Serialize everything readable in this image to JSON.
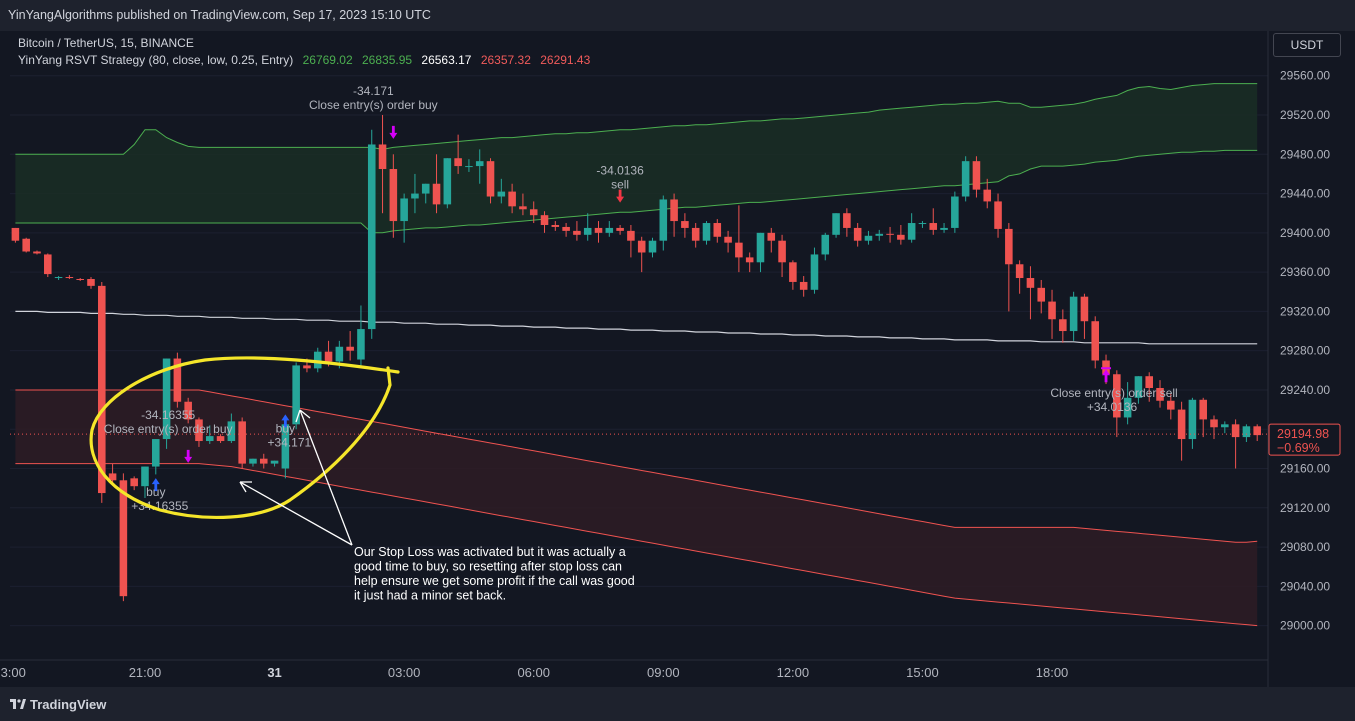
{
  "publish_info": "YinYangAlgorithms published on TradingView.com, Sep 17, 2023 15:10 UTC",
  "symbol": "Bitcoin / TetherUS, 15, BINANCE",
  "indicator": {
    "name": "YinYang RSVT Strategy (80, close, low, 0.25, Entry)",
    "values": [
      "26769.02",
      "26835.95",
      "26563.17",
      "26357.32",
      "26291.43"
    ],
    "value_colors": [
      "#4caf50",
      "#4caf50",
      "#ffffff",
      "#f15b5b",
      "#f15b5b"
    ]
  },
  "currency_button": "USDT",
  "footer_brand": "TradingView",
  "footer_logo": "tradingview-logo-icon",
  "colors": {
    "up": "#26a69a",
    "down": "#ef5350",
    "upper_band": "#4caf50",
    "lower_band": "#ef5350",
    "midline": "#d1d4dc",
    "annotation": "#f5e62a",
    "buy_arrow": "#2962ff",
    "sell_arrow": "#f23645",
    "close_arrow": "#d500f9"
  },
  "chart_data": {
    "type": "candlestick",
    "x_ticks": [
      "3:00",
      "21:00",
      "31",
      "03:00",
      "06:00",
      "09:00",
      "12:00",
      "15:00",
      "18:00"
    ],
    "y_ticks": [
      "29560.00",
      "29520.00",
      "29480.00",
      "29440.00",
      "29400.00",
      "29360.00",
      "29320.00",
      "29280.00",
      "29240.00",
      "29200.00",
      "29160.00",
      "29120.00",
      "29080.00",
      "29040.00",
      "29000.00"
    ],
    "ylim": [
      28965,
      29575
    ],
    "bar_interval_minutes": 15,
    "first_bar_time": "Aug 30 18:00",
    "current_price": "29194.98",
    "current_change": "−0.69%",
    "candles": [
      [
        29405,
        29402,
        29392,
        29390
      ],
      [
        29394,
        29395,
        29381,
        29380
      ],
      [
        29381,
        29382,
        29379,
        29378
      ],
      [
        29378,
        29379,
        29358,
        29355
      ],
      [
        29355,
        29356,
        29355,
        29352
      ],
      [
        29355,
        29357,
        29354,
        29353
      ],
      [
        29353,
        29354,
        29352,
        29351
      ],
      [
        29353,
        29355,
        29346,
        29343
      ],
      [
        29346,
        29350,
        29135,
        29125
      ],
      [
        29155,
        29165,
        29148,
        29145
      ],
      [
        29148,
        29155,
        29030,
        29025
      ],
      [
        29150,
        29152,
        29142,
        29138
      ],
      [
        29142,
        29158,
        29162,
        29130
      ],
      [
        29162,
        29166,
        29190,
        29154
      ],
      [
        29190,
        29194,
        29272,
        29180
      ],
      [
        29272,
        29278,
        29228,
        29222
      ],
      [
        29228,
        29232,
        29210,
        29206
      ],
      [
        29210,
        29212,
        29188,
        29182
      ],
      [
        29188,
        29204,
        29193,
        29185
      ],
      [
        29193,
        29195,
        29188,
        29186
      ],
      [
        29188,
        29216,
        29208,
        29186
      ],
      [
        29208,
        29212,
        29165,
        29160
      ],
      [
        29165,
        29170,
        29170,
        29162
      ],
      [
        29170,
        29175,
        29165,
        29160
      ],
      [
        29165,
        29168,
        29168,
        29162
      ],
      [
        29160,
        29212,
        29205,
        29150
      ],
      [
        29205,
        29268,
        29265,
        29200
      ],
      [
        29265,
        29272,
        29262,
        29258
      ],
      [
        29262,
        29283,
        29279,
        29258
      ],
      [
        29279,
        29290,
        29269,
        29264
      ],
      [
        29269,
        29290,
        29284,
        29262
      ],
      [
        29284,
        29300,
        29280,
        29270
      ],
      [
        29271,
        29326,
        29302,
        29265
      ],
      [
        29302,
        29505,
        29490,
        29292
      ],
      [
        29490,
        29520,
        29465,
        29420
      ],
      [
        29465,
        29480,
        29412,
        29395
      ],
      [
        29412,
        29440,
        29435,
        29390
      ],
      [
        29435,
        29460,
        29440,
        29420
      ],
      [
        29440,
        29446,
        29450,
        29430
      ],
      [
        29450,
        29480,
        29429,
        29420
      ],
      [
        29429,
        29476,
        29476,
        29425
      ],
      [
        29476,
        29500,
        29468,
        29460
      ],
      [
        29468,
        29475,
        29468,
        29462
      ],
      [
        29468,
        29485,
        29473,
        29450
      ],
      [
        29473,
        29476,
        29437,
        29430
      ],
      [
        29437,
        29455,
        29442,
        29430
      ],
      [
        29442,
        29450,
        29427,
        29420
      ],
      [
        29427,
        29440,
        29424,
        29418
      ],
      [
        29424,
        29432,
        29418,
        29410
      ],
      [
        29418,
        29422,
        29408,
        29400
      ],
      [
        29408,
        29412,
        29406,
        29402
      ],
      [
        29406,
        29410,
        29402,
        29396
      ],
      [
        29402,
        29412,
        29398,
        29392
      ],
      [
        29398,
        29420,
        29405,
        29392
      ],
      [
        29405,
        29412,
        29400,
        29390
      ],
      [
        29400,
        29412,
        29405,
        29396
      ],
      [
        29405,
        29408,
        29402,
        29398
      ],
      [
        29402,
        29408,
        29392,
        29375
      ],
      [
        29392,
        29396,
        29380,
        29360
      ],
      [
        29380,
        29395,
        29392,
        29375
      ],
      [
        29392,
        29438,
        29434,
        29382
      ],
      [
        29434,
        29440,
        29412,
        29396
      ],
      [
        29412,
        29420,
        29405,
        29395
      ],
      [
        29405,
        29410,
        29392,
        29385
      ],
      [
        29392,
        29412,
        29410,
        29388
      ],
      [
        29410,
        29414,
        29396,
        29390
      ],
      [
        29396,
        29402,
        29390,
        29380
      ],
      [
        29390,
        29428,
        29375,
        29360
      ],
      [
        29375,
        29380,
        29370,
        29360
      ],
      [
        29370,
        29380,
        29400,
        29360
      ],
      [
        29400,
        29405,
        29392,
        29380
      ],
      [
        29392,
        29398,
        29370,
        29355
      ],
      [
        29370,
        29372,
        29350,
        29342
      ],
      [
        29350,
        29356,
        29342,
        29335
      ],
      [
        29342,
        29385,
        29378,
        29338
      ],
      [
        29378,
        29400,
        29398,
        29372
      ],
      [
        29398,
        29412,
        29420,
        29395
      ],
      [
        29420,
        29425,
        29405,
        29396
      ],
      [
        29405,
        29410,
        29392,
        29386
      ],
      [
        29392,
        29402,
        29397,
        29388
      ],
      [
        29397,
        29403,
        29399,
        29392
      ],
      [
        29399,
        29406,
        29398,
        29390
      ],
      [
        29398,
        29408,
        29393,
        29388
      ],
      [
        29393,
        29420,
        29410,
        29390
      ],
      [
        29410,
        29412,
        29410,
        29405
      ],
      [
        29410,
        29425,
        29403,
        29398
      ],
      [
        29403,
        29410,
        29405,
        29400
      ],
      [
        29405,
        29442,
        29437,
        29400
      ],
      [
        29437,
        29478,
        29473,
        29432
      ],
      [
        29473,
        29478,
        29444,
        29436
      ],
      [
        29444,
        29455,
        29432,
        29425
      ],
      [
        29432,
        29440,
        29404,
        29395
      ],
      [
        29404,
        29410,
        29368,
        29320
      ],
      [
        29368,
        29372,
        29354,
        29338
      ],
      [
        29354,
        29366,
        29344,
        29312
      ],
      [
        29344,
        29352,
        29330,
        29318
      ],
      [
        29330,
        29342,
        29312,
        29292
      ],
      [
        29312,
        29322,
        29300,
        29288
      ],
      [
        29300,
        29340,
        29335,
        29290
      ],
      [
        29335,
        29338,
        29310,
        29292
      ],
      [
        29310,
        29315,
        29270,
        29262
      ],
      [
        29270,
        29276,
        29256,
        29246
      ],
      [
        29256,
        29260,
        29212,
        29192
      ],
      [
        29212,
        29248,
        29232,
        29205
      ],
      [
        29232,
        29248,
        29254,
        29226
      ],
      [
        29254,
        29258,
        29242,
        29228
      ],
      [
        29242,
        29250,
        29229,
        29222
      ],
      [
        29229,
        29236,
        29220,
        29210
      ],
      [
        29220,
        29228,
        29190,
        29168
      ],
      [
        29190,
        29232,
        29230,
        29180
      ],
      [
        29230,
        29232,
        29210,
        29192
      ],
      [
        29210,
        29214,
        29202,
        29190
      ],
      [
        29202,
        29208,
        29205,
        29196
      ],
      [
        29205,
        29210,
        29192,
        29160
      ],
      [
        29192,
        29205,
        29203,
        29187
      ],
      [
        29203,
        29205,
        29194,
        29188
      ]
    ],
    "upper_band_top": [
      29480,
      29480,
      29480,
      29480,
      29480,
      29480,
      29480,
      29480,
      29480,
      29480,
      29480,
      29490,
      29505,
      29505,
      29497,
      29492,
      29488,
      29487,
      29487,
      29487,
      29487,
      29487,
      29487,
      29487,
      29487,
      29487,
      29487,
      29487,
      29487,
      29487,
      29487,
      29487,
      29487,
      29487,
      29485,
      29487,
      29488,
      29489,
      29490,
      29491,
      29492,
      29493,
      29494,
      29495,
      29496,
      29497,
      29497,
      29498,
      29499,
      29500,
      29501,
      29501,
      29502,
      29502,
      29503,
      29504,
      29505,
      29505,
      29506,
      29507,
      29508,
      29509,
      29509,
      29510,
      29510,
      29511,
      29512,
      29513,
      29514,
      29514,
      29515,
      29516,
      29516,
      29517,
      29518,
      29519,
      29520,
      29521,
      29522,
      29523,
      29525,
      29526,
      29527,
      29528,
      29529,
      29530,
      29531,
      29531,
      29532,
      29532,
      29533,
      29534,
      29532,
      29532,
      29528,
      29528,
      29529,
      29530,
      29531,
      29533,
      29536,
      29538,
      29540,
      29545,
      29548,
      29549,
      29547,
      29546,
      29548,
      29550,
      29551,
      29552,
      29552,
      29552,
      29552,
      29552
    ],
    "upper_band_bottom": [
      29410,
      29410,
      29410,
      29410,
      29410,
      29410,
      29410,
      29410,
      29410,
      29410,
      29410,
      29410,
      29410,
      29410,
      29410,
      29410,
      29410,
      29410,
      29410,
      29410,
      29410,
      29410,
      29410,
      29410,
      29410,
      29410,
      29410,
      29410,
      29410,
      29410,
      29410,
      29410,
      29410,
      29400,
      29400,
      29402,
      29403,
      29404,
      29405,
      29405,
      29406,
      29407,
      29408,
      29408,
      29409,
      29410,
      29411,
      29412,
      29413,
      29414,
      29415,
      29416,
      29417,
      29418,
      29419,
      29420,
      29421,
      29421,
      29422,
      29423,
      29424,
      29425,
      29426,
      29426,
      29427,
      29428,
      29429,
      29430,
      29431,
      29431,
      29432,
      29433,
      29434,
      29435,
      29436,
      29437,
      29438,
      29439,
      29440,
      29441,
      29442,
      29443,
      29444,
      29445,
      29446,
      29447,
      29448,
      29448,
      29449,
      29450,
      29451,
      29452,
      29458,
      29460,
      29465,
      29468,
      29468,
      29468,
      29469,
      29470,
      29472,
      29473,
      29474,
      29476,
      29478,
      29479,
      29480,
      29481,
      29482,
      29482,
      29483,
      29483,
      29484,
      29484,
      29484,
      29484
    ],
    "midline": [
      29320,
      29320,
      29320,
      29319,
      29319,
      29319,
      29319,
      29318,
      29318,
      29318,
      29317,
      29317,
      29316,
      29316,
      29316,
      29315,
      29315,
      29315,
      29314,
      29314,
      29314,
      29313,
      29313,
      29313,
      29312,
      29312,
      29312,
      29311,
      29311,
      29311,
      29310,
      29310,
      29310,
      29309,
      29309,
      29309,
      29308,
      29308,
      29308,
      29307,
      29307,
      29307,
      29306,
      29306,
      29306,
      29305,
      29305,
      29305,
      29304,
      29304,
      29304,
      29303,
      29303,
      29303,
      29302,
      29302,
      29302,
      29301,
      29301,
      29301,
      29300,
      29300,
      29300,
      29299,
      29299,
      29299,
      29298,
      29298,
      29298,
      29297,
      29297,
      29297,
      29296,
      29296,
      29296,
      29295,
      29295,
      29295,
      29294,
      29294,
      29294,
      29293,
      29293,
      29293,
      29292,
      29292,
      29292,
      29291,
      29291,
      29291,
      29291,
      29290,
      29290,
      29290,
      29290,
      29289,
      29289,
      29289,
      29289,
      29288,
      29288,
      29288,
      29288,
      29288,
      29288,
      29287,
      29287,
      29287,
      29287,
      29287,
      29287,
      29287,
      29287,
      29287,
      29287,
      29287
    ],
    "lower_band_top": [
      29240,
      29240,
      29240,
      29240,
      29240,
      29240,
      29240,
      29240,
      29240,
      29240,
      29240,
      29240,
      29240,
      29240,
      29240,
      29240,
      29240,
      29240,
      29238,
      29236,
      29234,
      29232,
      29230,
      29228,
      29226,
      29224,
      29222,
      29220,
      29218,
      29216,
      29214,
      29212,
      29210,
      29208,
      29206,
      29204,
      29202,
      29200,
      29198,
      29196,
      29194,
      29192,
      29190,
      29188,
      29186,
      29184,
      29182,
      29180,
      29178,
      29176,
      29174,
      29172,
      29170,
      29168,
      29166,
      29164,
      29162,
      29160,
      29158,
      29156,
      29154,
      29152,
      29150,
      29148,
      29146,
      29144,
      29142,
      29140,
      29138,
      29136,
      29134,
      29132,
      29130,
      29128,
      29126,
      29124,
      29122,
      29120,
      29118,
      29116,
      29114,
      29112,
      29110,
      29108,
      29106,
      29104,
      29102,
      29100,
      29100,
      29100,
      29100,
      29100,
      29100,
      29100,
      29100,
      29100,
      29100,
      29100,
      29100,
      29099,
      29098,
      29097,
      29096,
      29095,
      29094,
      29093,
      29092,
      29091,
      29090,
      29089,
      29088,
      29087,
      29086,
      29085,
      29085,
      29086
    ],
    "lower_band_bottom": [
      29165,
      29165,
      29165,
      29165,
      29165,
      29165,
      29165,
      29165,
      29165,
      29165,
      29165,
      29165,
      29165,
      29165,
      29165,
      29165,
      29165,
      29165,
      29164,
      29163,
      29162,
      29160,
      29158,
      29156,
      29154,
      29152,
      29150,
      29148,
      29146,
      29144,
      29142,
      29140,
      29138,
      29136,
      29134,
      29132,
      29130,
      29128,
      29126,
      29124,
      29122,
      29120,
      29118,
      29116,
      29114,
      29112,
      29110,
      29108,
      29106,
      29104,
      29102,
      29100,
      29098,
      29096,
      29094,
      29092,
      29090,
      29088,
      29086,
      29084,
      29082,
      29080,
      29078,
      29076,
      29074,
      29072,
      29070,
      29068,
      29066,
      29064,
      29062,
      29060,
      29058,
      29056,
      29054,
      29052,
      29050,
      29048,
      29046,
      29044,
      29042,
      29040,
      29038,
      29036,
      29034,
      29032,
      29030,
      29028,
      29027,
      29026,
      29025,
      29024,
      29023,
      29022,
      29021,
      29020,
      29019,
      29018,
      29017,
      29016,
      29015,
      29014,
      29013,
      29012,
      29011,
      29010,
      29009,
      29008,
      29007,
      29006,
      29005,
      29004,
      29003,
      29002,
      29001,
      29000
    ],
    "trades": [
      {
        "bar": 13,
        "side": "buy",
        "label": "buy",
        "value": "+34.16355",
        "price": 29140
      },
      {
        "bar": 16,
        "side": "close",
        "label": "Close entry(s) order buy",
        "value": "-34.16355",
        "price": 29180
      },
      {
        "bar": 25,
        "side": "buy",
        "label": "buy",
        "value": "+34.171",
        "price": 29205
      },
      {
        "bar": 35,
        "side": "close",
        "label": "Close entry(s) order buy",
        "value": "-34.171",
        "price": 29510
      },
      {
        "bar": 56,
        "side": "sell",
        "label": "sell",
        "value": "-34.0136",
        "price": 29445
      },
      {
        "bar": 101,
        "side": "close_sell",
        "label": "Close entry(s) order sell",
        "value": "+34.0136",
        "price": 29255
      }
    ],
    "annotation_text": [
      "Our Stop Loss was activated but it was actually a",
      "good time to buy, so resetting after stop loss can",
      "help ensure we get some profit if the call was good",
      "it just had a minor set back."
    ]
  }
}
